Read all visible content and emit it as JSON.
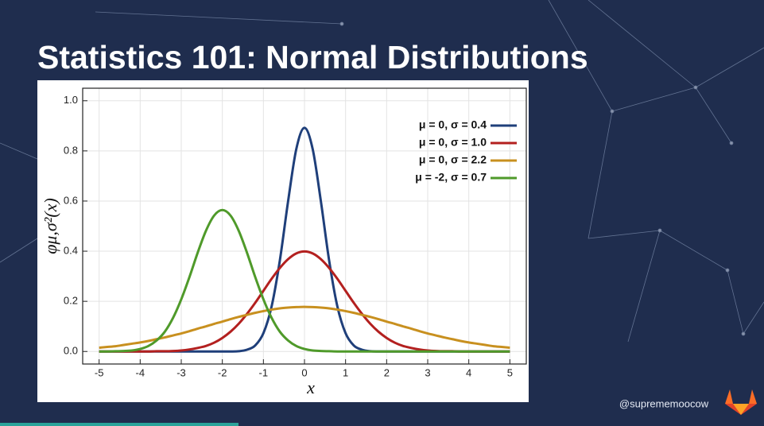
{
  "title": "Statistics 101: Normal Distributions",
  "handle": "@suprememoocow",
  "chart_data": {
    "type": "line",
    "xlabel": "x",
    "ylabel": "φμ,σ²(x)",
    "x": [
      -5,
      -4.8,
      -4.6,
      -4.4,
      -4.2,
      -4,
      -3.8,
      -3.6,
      -3.4,
      -3.2,
      -3,
      -2.8,
      -2.6,
      -2.4,
      -2.2,
      -2,
      -1.8,
      -1.6,
      -1.4,
      -1.2,
      -1,
      -0.8,
      -0.6,
      -0.4,
      -0.2,
      0,
      0.2,
      0.4,
      0.6,
      0.8,
      1,
      1.2,
      1.4,
      1.6,
      1.8,
      2,
      2.2,
      2.4,
      2.6,
      2.8,
      3,
      3.2,
      3.4,
      3.6,
      3.8,
      4,
      4.2,
      4.4,
      4.6,
      4.8,
      5
    ],
    "series": [
      {
        "name": "μ = 0, σ = 0.4",
        "color": "#1f3f7a",
        "values": [
          0,
          0,
          0,
          0,
          0,
          0,
          0,
          0,
          0,
          0,
          0,
          0,
          0,
          0,
          0,
          0,
          0,
          0.001,
          0.007,
          0.024,
          0.073,
          0.18,
          0.363,
          0.598,
          0.807,
          0.892,
          0.807,
          0.598,
          0.363,
          0.18,
          0.073,
          0.024,
          0.007,
          0.001,
          0,
          0,
          0,
          0,
          0,
          0,
          0,
          0,
          0,
          0,
          0,
          0,
          0,
          0,
          0,
          0,
          0
        ]
      },
      {
        "name": "μ = 0, σ = 1.0",
        "color": "#b3201f",
        "values": [
          0,
          0,
          0,
          0,
          0,
          0,
          0,
          0.001,
          0.001,
          0.002,
          0.004,
          0.008,
          0.014,
          0.022,
          0.035,
          0.054,
          0.079,
          0.111,
          0.15,
          0.194,
          0.242,
          0.29,
          0.333,
          0.368,
          0.391,
          0.399,
          0.391,
          0.368,
          0.333,
          0.29,
          0.242,
          0.194,
          0.15,
          0.111,
          0.079,
          0.054,
          0.035,
          0.022,
          0.014,
          0.008,
          0.004,
          0.002,
          0.001,
          0.001,
          0,
          0,
          0,
          0,
          0,
          0,
          0
        ]
      },
      {
        "name": "μ = 0, σ = 2.2",
        "color": "#c8901f",
        "values": [
          0.015,
          0.018,
          0.021,
          0.026,
          0.031,
          0.036,
          0.042,
          0.049,
          0.056,
          0.064,
          0.072,
          0.081,
          0.091,
          0.1,
          0.11,
          0.119,
          0.129,
          0.138,
          0.146,
          0.154,
          0.161,
          0.167,
          0.172,
          0.175,
          0.177,
          0.178,
          0.177,
          0.175,
          0.172,
          0.167,
          0.161,
          0.154,
          0.146,
          0.138,
          0.129,
          0.119,
          0.11,
          0.1,
          0.091,
          0.081,
          0.072,
          0.064,
          0.056,
          0.049,
          0.042,
          0.036,
          0.031,
          0.026,
          0.021,
          0.018,
          0.015
        ]
      },
      {
        "name": "μ = -2, σ = 0.7",
        "color": "#4f9a2a",
        "values": [
          0,
          0,
          0.001,
          0.002,
          0.004,
          0.01,
          0.022,
          0.044,
          0.079,
          0.134,
          0.208,
          0.297,
          0.394,
          0.481,
          0.542,
          0.564,
          0.542,
          0.481,
          0.394,
          0.297,
          0.208,
          0.134,
          0.079,
          0.044,
          0.022,
          0.01,
          0.004,
          0.002,
          0.001,
          0,
          0,
          0,
          0,
          0,
          0,
          0,
          0,
          0,
          0,
          0,
          0,
          0,
          0,
          0,
          0,
          0,
          0,
          0,
          0,
          0,
          0
        ]
      }
    ],
    "xlim": [
      -5.4,
      5.4
    ],
    "ylim": [
      -0.05,
      1.05
    ],
    "xticks": [
      -5,
      -4,
      -3,
      -2,
      -1,
      0,
      1,
      2,
      3,
      4,
      5
    ],
    "yticks": [
      {
        "value": 0,
        "label": "0.0"
      },
      0.2,
      0.4,
      0.6,
      0.8,
      {
        "value": 1,
        "label": "1.0"
      }
    ],
    "grid": true,
    "legend": "upper right"
  }
}
